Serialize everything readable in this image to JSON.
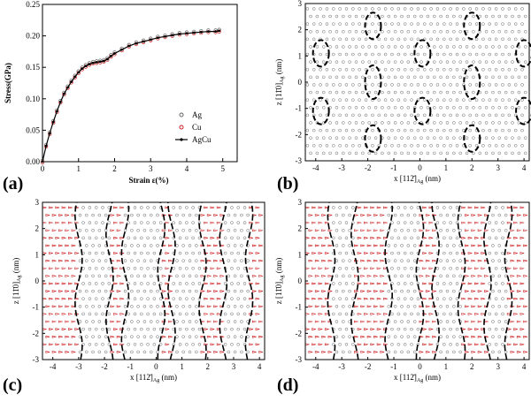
{
  "chart_data": [
    {
      "panel": "(a)",
      "type": "line",
      "xlabel": "Strain ε(%)",
      "ylabel": "Stress(GPa)",
      "xlim": [
        0,
        5.4
      ],
      "ylim": [
        0,
        0.25
      ],
      "xticks": [
        "0",
        "1",
        "2",
        "3",
        "4",
        "5"
      ],
      "yticks": [
        "0.00",
        "0.05",
        "0.10",
        "0.15",
        "0.20",
        "0.25"
      ],
      "legend": [
        "Ag",
        "Cu",
        "AgCu"
      ],
      "legend_position": "bottom-right",
      "series": [
        {
          "name": "AgCu",
          "x": [
            0,
            0.1,
            0.2,
            0.3,
            0.4,
            0.5,
            0.6,
            0.7,
            0.8,
            0.9,
            1.0,
            1.1,
            1.2,
            1.3,
            1.4,
            1.5,
            1.6,
            1.7,
            1.8,
            1.9,
            2.0,
            2.2,
            2.4,
            2.6,
            2.8,
            3.0,
            3.2,
            3.4,
            3.6,
            3.8,
            4.0,
            4.2,
            4.4,
            4.6,
            4.8,
            4.9
          ],
          "y": [
            0.0,
            0.025,
            0.045,
            0.063,
            0.08,
            0.095,
            0.108,
            0.118,
            0.127,
            0.135,
            0.142,
            0.148,
            0.152,
            0.155,
            0.157,
            0.158,
            0.159,
            0.16,
            0.163,
            0.168,
            0.172,
            0.178,
            0.184,
            0.188,
            0.191,
            0.194,
            0.197,
            0.199,
            0.201,
            0.203,
            0.204,
            0.205,
            0.206,
            0.207,
            0.207,
            0.208
          ]
        }
      ]
    },
    {
      "panel": "(b)",
      "type": "scatter",
      "xlabel": "x [112̄]",
      "xlabel_sub": "Ag",
      "xlabel_unit": "(nm)",
      "ylabel": "z [11̄0]",
      "ylabel_sub": "Ag",
      "ylabel_unit": "(nm)",
      "xlim": [
        -4.4,
        4.2
      ],
      "ylim": [
        -3,
        3
      ],
      "xticks": [
        "-4",
        "-3",
        "-2",
        "-1",
        "0",
        "1",
        "2",
        "3",
        "4"
      ],
      "yticks": [
        "-3",
        "-2",
        "-1",
        "0",
        "1",
        "2",
        "3"
      ],
      "ellipses": [
        {
          "x": -3.8,
          "z": 1.1
        },
        {
          "x": -3.8,
          "z": -1.1
        },
        {
          "x": -1.8,
          "z": 2.15
        },
        {
          "x": -1.8,
          "z": 0.0
        },
        {
          "x": -1.8,
          "z": -2.15
        },
        {
          "x": 0.1,
          "z": 1.1
        },
        {
          "x": 0.1,
          "z": -1.1
        },
        {
          "x": 2.0,
          "z": 2.15
        },
        {
          "x": 2.0,
          "z": 0.0
        },
        {
          "x": 2.0,
          "z": -2.15
        },
        {
          "x": 4.0,
          "z": 1.1
        },
        {
          "x": 4.0,
          "z": -1.1
        }
      ]
    },
    {
      "panel": "(c)",
      "type": "scatter",
      "xlabel": "x [112̄]",
      "xlabel_sub": "Ag",
      "xlabel_unit": "(nm)",
      "ylabel": "z [11̄0]",
      "ylabel_sub": "Ag",
      "ylabel_unit": "(nm)",
      "xlim": [
        -4.4,
        4.2
      ],
      "ylim": [
        -3,
        3
      ],
      "xticks": [
        "-4",
        "-3",
        "-2",
        "-1",
        "0",
        "1",
        "2",
        "3",
        "4"
      ],
      "yticks": [
        "-3",
        "-2",
        "-1",
        "0",
        "1",
        "2",
        "3"
      ],
      "boundaries_x": [
        -3.0,
        -1.8,
        -1.2,
        0.2,
        0.6,
        1.8,
        2.6,
        3.6
      ]
    },
    {
      "panel": "(d)",
      "type": "scatter",
      "xlabel": "x [112̄]",
      "xlabel_sub": "Ag",
      "xlabel_unit": "(nm)",
      "ylabel": "z [11̄0]",
      "ylabel_sub": "Ag",
      "ylabel_unit": "(nm)",
      "xlim": [
        -4.4,
        4.2
      ],
      "ylim": [
        -3,
        3
      ],
      "xticks": [
        "-4",
        "-3",
        "-2",
        "-1",
        "0",
        "1",
        "2",
        "3",
        "4"
      ],
      "yticks": [
        "-3",
        "-2",
        "-1",
        "0",
        "1",
        "2",
        "3"
      ],
      "boundaries_x": [
        -3.4,
        -2.5,
        -1.2,
        0.0,
        0.6,
        1.6,
        2.6,
        3.4
      ]
    }
  ],
  "colors": {
    "ag": "#666666",
    "cu": "#cc2222",
    "line": "#000000"
  }
}
